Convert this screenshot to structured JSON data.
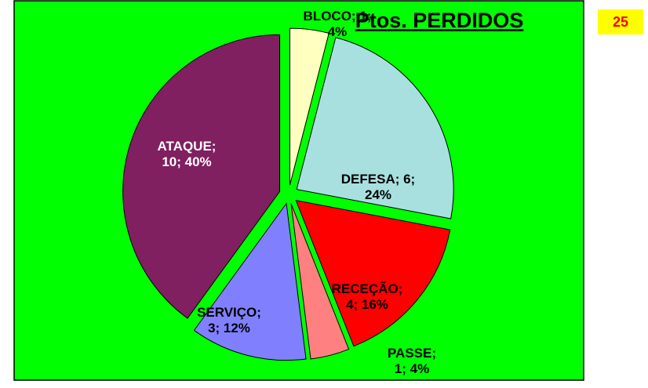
{
  "chart_data": {
    "type": "pie",
    "title": "Ptos. PERDIDOS",
    "total": 25,
    "categories": [
      "BLOCO",
      "DEFESA",
      "RECEÇÃO",
      "PASSE",
      "SERVIÇO",
      "ATAQUE"
    ],
    "values": [
      1,
      6,
      4,
      1,
      3,
      10
    ],
    "value_labels": [
      [
        "BLOCO; 1;",
        "4%"
      ],
      [
        "DEFESA; 6;",
        "24%"
      ],
      [
        "RECEÇÃO;",
        "4; 16%"
      ],
      [
        "PASSE;",
        "1; 4%"
      ],
      [
        "SERVIÇO;",
        "3; 12%"
      ],
      [
        "ATAQUE;",
        "10; 40%"
      ]
    ],
    "colors": [
      "#ffffc0",
      "#a8e0e0",
      "#ff0000",
      "#ff8080",
      "#8080ff",
      "#802060"
    ],
    "background": "#00ff00"
  }
}
